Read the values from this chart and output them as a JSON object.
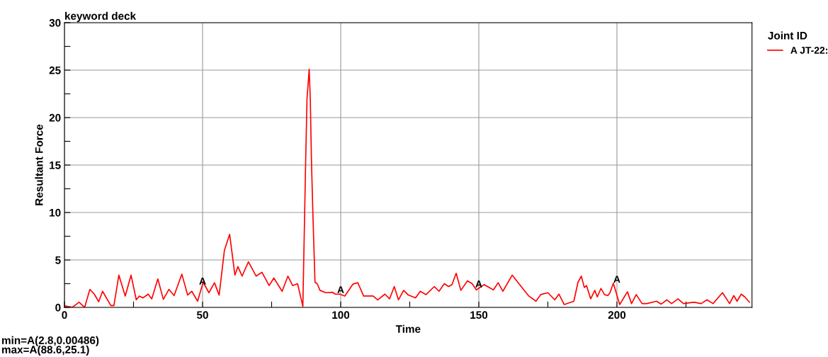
{
  "chart_data": {
    "type": "line",
    "title": "keyword deck",
    "xlabel": "Time",
    "ylabel": "Resultant Force",
    "legend_title": "Joint ID",
    "legend": "right",
    "grid": true,
    "xlim": [
      0,
      248.9
    ],
    "ylim": [
      0,
      30
    ],
    "xticks": [
      0,
      {
        "value": 25,
        "label": null
      },
      50,
      {
        "value": 75,
        "label": null
      },
      100,
      {
        "value": 125,
        "label": null
      },
      150,
      {
        "value": 175,
        "label": null
      },
      200,
      {
        "value": 225,
        "label": null
      }
    ],
    "yticks": [
      0,
      {
        "value": 2.5,
        "label": null
      },
      5,
      {
        "value": 7.5,
        "label": null
      },
      10,
      {
        "value": 12.5,
        "label": null
      },
      15,
      {
        "value": 17.5,
        "label": null
      },
      20,
      {
        "value": 22.5,
        "label": null
      },
      25,
      {
        "value": 27.5,
        "label": null
      },
      30
    ],
    "series": [
      {
        "name": "A JT-22:",
        "color": "#ff0000",
        "x": [
          0.2,
          2.8,
          5.3,
          7.3,
          9.2,
          10.8,
          12.4,
          13.8,
          16.8,
          17.9,
          19.7,
          22,
          24.1,
          26,
          27.1,
          28.4,
          30.3,
          31.6,
          33.8,
          35.8,
          37.8,
          39.7,
          42.5,
          44.6,
          46.1,
          48.2,
          50.2,
          52.3,
          54.3,
          56,
          57.9,
          59.8,
          61.7,
          62.8,
          64.3,
          66.6,
          69.4,
          71.5,
          74.1,
          75.8,
          78.8,
          80.9,
          82.6,
          84.4,
          86.3,
          87.3,
          87.8,
          88.6,
          89.0,
          89.4,
          89.9,
          90.7,
          91.5,
          92.5,
          94.6,
          97,
          98,
          99.7,
          101.5,
          104.4,
          106.2,
          108.3,
          111.7,
          113.4,
          116,
          117.7,
          119.4,
          120.9,
          122.8,
          124.5,
          127.1,
          128.8,
          130.9,
          133.9,
          135.6,
          137.5,
          139.1,
          140.3,
          141.8,
          143.5,
          145.9,
          147.6,
          149.1,
          151.9,
          155.3,
          157,
          158.7,
          162.1,
          165.6,
          168.1,
          170.7,
          172.4,
          175,
          177.5,
          179,
          180.9,
          184.4,
          185.9,
          187.1,
          188.2,
          189,
          190.5,
          192,
          192.9,
          194.2,
          195.5,
          196.7,
          197.5,
          198.7,
          201,
          203.8,
          205.3,
          207,
          209.1,
          210.8,
          214.3,
          216,
          218.1,
          219.8,
          222.1,
          224.1,
          227.9,
          230.5,
          232.6,
          234.8,
          238.2,
          240.8,
          242.3,
          243.5,
          245,
          246.3,
          248
        ],
        "values": [
          0.17,
          0.005,
          0.55,
          0,
          1.9,
          1.4,
          0.6,
          1.7,
          0.2,
          0.2,
          3.4,
          1.2,
          3.4,
          0.8,
          1.2,
          1.0,
          1.4,
          0.9,
          3.0,
          0.85,
          1.9,
          1.25,
          3.5,
          1.3,
          1.7,
          0.65,
          2.65,
          1.55,
          2.6,
          1.3,
          6.0,
          7.7,
          3.4,
          4.3,
          3.3,
          4.8,
          3.3,
          3.7,
          2.3,
          3.1,
          1.7,
          3.3,
          2.3,
          2.5,
          0.1,
          15.1,
          21.9,
          25.1,
          21.9,
          15.7,
          10.2,
          2.65,
          2.5,
          1.8,
          1.55,
          1.6,
          1.4,
          1.4,
          1.2,
          2.45,
          2.6,
          1.2,
          1.2,
          0.8,
          1.4,
          0.9,
          2.2,
          0.8,
          1.8,
          1.3,
          1.0,
          1.7,
          1.35,
          2.2,
          1.7,
          2.5,
          2.2,
          2.4,
          3.6,
          1.8,
          2.8,
          2.5,
          1.85,
          2.4,
          1.85,
          2.6,
          1.7,
          3.4,
          2.1,
          1.2,
          0.65,
          1.35,
          1.55,
          0.8,
          1.4,
          0.3,
          0.65,
          2.65,
          3.3,
          2.1,
          2.3,
          0.9,
          1.8,
          1.1,
          2.0,
          1.35,
          1.25,
          1.55,
          2.55,
          0.3,
          1.65,
          0.4,
          1.35,
          0.4,
          0.4,
          0.65,
          0.35,
          0.8,
          0.4,
          0.9,
          0.4,
          0.55,
          0.4,
          0.8,
          0.4,
          1.55,
          0.4,
          1.25,
          0.65,
          1.4,
          1.1,
          0.55
        ]
      }
    ],
    "annotations": [
      {
        "text": "A",
        "x": 50,
        "y": 2.2
      },
      {
        "text": "A",
        "x": 100,
        "y": 1.3
      },
      {
        "text": "A",
        "x": 150,
        "y": 1.9
      },
      {
        "text": "A",
        "x": 200,
        "y": 2.4
      },
      "min=A(2.8,0.00486)",
      "max=A(88.6,25.1)"
    ]
  }
}
